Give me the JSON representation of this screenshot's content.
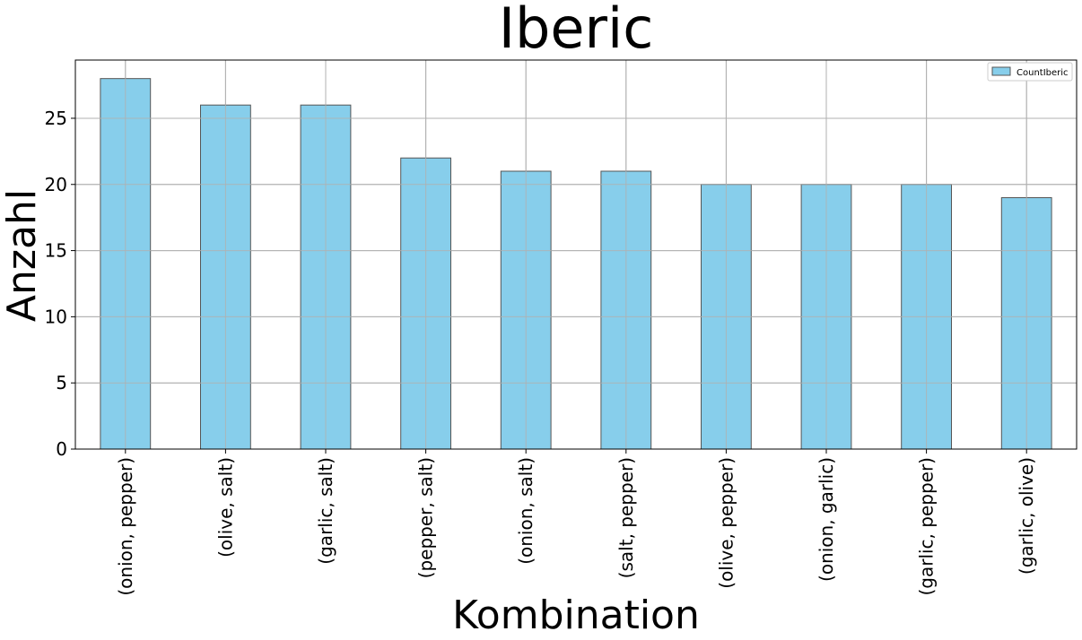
{
  "chart_data": {
    "type": "bar",
    "title": "Iberic",
    "xlabel": "Kombination",
    "ylabel": "Anzahl",
    "categories": [
      "(onion, pepper)",
      "(olive, salt)",
      "(garlic, salt)",
      "(pepper, salt)",
      "(onion, salt)",
      "(salt, pepper)",
      "(olive, pepper)",
      "(onion, garlic)",
      "(garlic, pepper)",
      "(garlic, olive)"
    ],
    "series": [
      {
        "name": "CountIberic",
        "values": [
          28,
          26,
          26,
          22,
          21,
          21,
          20,
          20,
          20,
          19
        ],
        "color": "#87CEEB",
        "edge_color": "#555555"
      }
    ],
    "ylim": [
      0,
      29.4
    ],
    "yticks": [
      0,
      5,
      10,
      15,
      20,
      25
    ],
    "grid": true,
    "legend_position": "top-right"
  }
}
